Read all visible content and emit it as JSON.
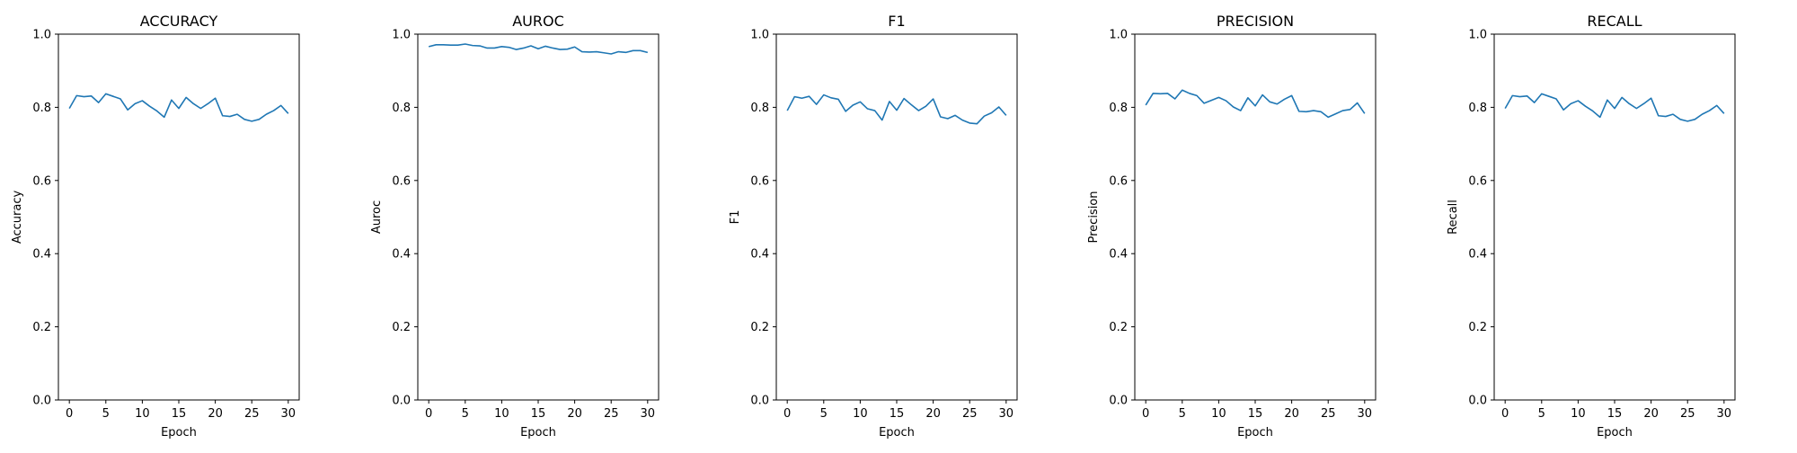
{
  "chart_data": [
    {
      "type": "line",
      "title": "ACCURACY",
      "xlabel": "Epoch",
      "ylabel": "Accuracy",
      "xlim": [
        -1.5,
        31.5
      ],
      "ylim": [
        0.0,
        1.0
      ],
      "xticks": [
        0,
        5,
        10,
        15,
        20,
        25,
        30
      ],
      "yticks": [
        0.0,
        0.2,
        0.4,
        0.6,
        0.8,
        1.0
      ],
      "grid": false,
      "color": "#1f77b4",
      "series": [
        {
          "x": [
            0,
            1,
            2,
            3,
            4,
            5,
            6,
            7,
            8,
            9,
            10,
            11,
            12,
            13,
            14,
            15,
            16,
            17,
            18,
            19,
            20,
            21,
            22,
            23,
            24,
            25,
            26,
            27,
            28,
            29,
            30
          ],
          "values": [
            0.797,
            0.832,
            0.829,
            0.831,
            0.813,
            0.837,
            0.83,
            0.823,
            0.793,
            0.81,
            0.818,
            0.803,
            0.79,
            0.773,
            0.82,
            0.797,
            0.827,
            0.81,
            0.797,
            0.81,
            0.825,
            0.777,
            0.775,
            0.781,
            0.767,
            0.762,
            0.767,
            0.781,
            0.791,
            0.805,
            0.783
          ]
        }
      ]
    },
    {
      "type": "line",
      "title": "AUROC",
      "xlabel": "Epoch",
      "ylabel": "Auroc",
      "xlim": [
        -1.5,
        31.5
      ],
      "ylim": [
        0.0,
        1.0
      ],
      "xticks": [
        0,
        5,
        10,
        15,
        20,
        25,
        30
      ],
      "yticks": [
        0.0,
        0.2,
        0.4,
        0.6,
        0.8,
        1.0
      ],
      "grid": false,
      "color": "#1f77b4",
      "series": [
        {
          "x": [
            0,
            1,
            2,
            3,
            4,
            5,
            6,
            7,
            8,
            9,
            10,
            11,
            12,
            13,
            14,
            15,
            16,
            17,
            18,
            19,
            20,
            21,
            22,
            23,
            24,
            25,
            26,
            27,
            28,
            29,
            30
          ],
          "values": [
            0.966,
            0.971,
            0.971,
            0.97,
            0.97,
            0.973,
            0.969,
            0.968,
            0.962,
            0.962,
            0.966,
            0.964,
            0.958,
            0.962,
            0.968,
            0.96,
            0.967,
            0.962,
            0.958,
            0.959,
            0.965,
            0.952,
            0.951,
            0.952,
            0.949,
            0.946,
            0.952,
            0.95,
            0.955,
            0.955,
            0.95
          ]
        }
      ]
    },
    {
      "type": "line",
      "title": "F1",
      "xlabel": "Epoch",
      "ylabel": "F1",
      "xlim": [
        -1.5,
        31.5
      ],
      "ylim": [
        0.0,
        1.0
      ],
      "xticks": [
        0,
        5,
        10,
        15,
        20,
        25,
        30
      ],
      "yticks": [
        0.0,
        0.2,
        0.4,
        0.6,
        0.8,
        1.0
      ],
      "grid": false,
      "color": "#1f77b4",
      "series": [
        {
          "x": [
            0,
            1,
            2,
            3,
            4,
            5,
            6,
            7,
            8,
            9,
            10,
            11,
            12,
            13,
            14,
            15,
            16,
            17,
            18,
            19,
            20,
            21,
            22,
            23,
            24,
            25,
            26,
            27,
            28,
            29,
            30
          ],
          "values": [
            0.791,
            0.829,
            0.825,
            0.83,
            0.808,
            0.834,
            0.826,
            0.822,
            0.789,
            0.806,
            0.815,
            0.796,
            0.791,
            0.765,
            0.816,
            0.792,
            0.824,
            0.807,
            0.791,
            0.803,
            0.823,
            0.774,
            0.769,
            0.778,
            0.765,
            0.757,
            0.755,
            0.776,
            0.785,
            0.801,
            0.778
          ]
        }
      ]
    },
    {
      "type": "line",
      "title": "PRECISION",
      "xlabel": "Epoch",
      "ylabel": "Precision",
      "xlim": [
        -1.5,
        31.5
      ],
      "ylim": [
        0.0,
        1.0
      ],
      "xticks": [
        0,
        5,
        10,
        15,
        20,
        25,
        30
      ],
      "yticks": [
        0.0,
        0.2,
        0.4,
        0.6,
        0.8,
        1.0
      ],
      "grid": false,
      "color": "#1f77b4",
      "series": [
        {
          "x": [
            0,
            1,
            2,
            3,
            4,
            5,
            6,
            7,
            8,
            9,
            10,
            11,
            12,
            13,
            14,
            15,
            16,
            17,
            18,
            19,
            20,
            21,
            22,
            23,
            24,
            25,
            26,
            27,
            28,
            29,
            30
          ],
          "values": [
            0.806,
            0.838,
            0.837,
            0.838,
            0.823,
            0.847,
            0.838,
            0.832,
            0.811,
            0.819,
            0.827,
            0.818,
            0.801,
            0.791,
            0.826,
            0.804,
            0.834,
            0.815,
            0.809,
            0.822,
            0.832,
            0.789,
            0.788,
            0.791,
            0.788,
            0.773,
            0.782,
            0.791,
            0.794,
            0.812,
            0.783
          ]
        }
      ]
    },
    {
      "type": "line",
      "title": "RECALL",
      "xlabel": "Epoch",
      "ylabel": "Recall",
      "xlim": [
        -1.5,
        31.5
      ],
      "ylim": [
        0.0,
        1.0
      ],
      "xticks": [
        0,
        5,
        10,
        15,
        20,
        25,
        30
      ],
      "yticks": [
        0.0,
        0.2,
        0.4,
        0.6,
        0.8,
        1.0
      ],
      "grid": false,
      "color": "#1f77b4",
      "series": [
        {
          "x": [
            0,
            1,
            2,
            3,
            4,
            5,
            6,
            7,
            8,
            9,
            10,
            11,
            12,
            13,
            14,
            15,
            16,
            17,
            18,
            19,
            20,
            21,
            22,
            23,
            24,
            25,
            26,
            27,
            28,
            29,
            30
          ],
          "values": [
            0.797,
            0.832,
            0.829,
            0.831,
            0.813,
            0.837,
            0.83,
            0.823,
            0.793,
            0.81,
            0.818,
            0.803,
            0.79,
            0.773,
            0.82,
            0.797,
            0.827,
            0.81,
            0.797,
            0.81,
            0.825,
            0.777,
            0.775,
            0.781,
            0.767,
            0.762,
            0.767,
            0.781,
            0.791,
            0.805,
            0.783
          ]
        }
      ]
    }
  ]
}
